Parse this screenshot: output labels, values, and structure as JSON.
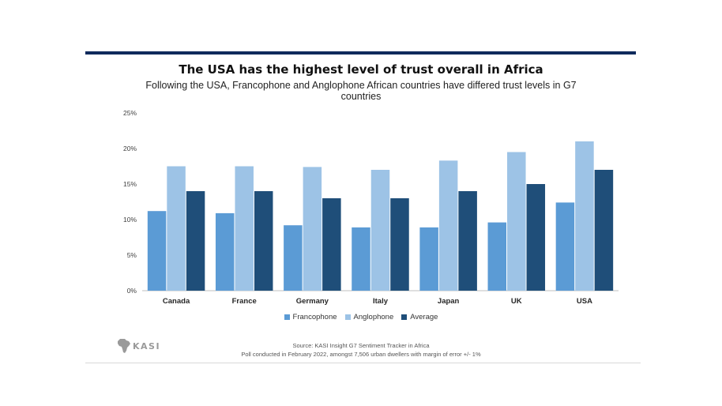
{
  "header": {
    "title": "The USA has the highest level of trust overall in Africa",
    "subtitle": "Following the USA, Francophone and Anglophone African countries have differed trust levels in G7 countries"
  },
  "chart_data": {
    "type": "bar",
    "categories": [
      "Canada",
      "France",
      "Germany",
      "Italy",
      "Japan",
      "UK",
      "USA"
    ],
    "series": [
      {
        "name": "Francophone",
        "color": "#5b9bd5",
        "values": [
          11.2,
          10.9,
          9.2,
          8.9,
          8.9,
          9.6,
          12.4
        ]
      },
      {
        "name": "Anglophone",
        "color": "#9dc3e6",
        "values": [
          17.5,
          17.5,
          17.4,
          17.0,
          18.3,
          19.5,
          21.0
        ]
      },
      {
        "name": "Average",
        "color": "#1f4e79",
        "values": [
          14.0,
          14.0,
          13.0,
          13.0,
          14.0,
          15.0,
          17.0
        ]
      }
    ],
    "yticks": [
      "0%",
      "5%",
      "10%",
      "15%",
      "20%",
      "25%"
    ],
    "ylim": [
      0,
      25
    ],
    "grid": false,
    "legend": "bottom"
  },
  "footer": {
    "logo_text": "KASI",
    "source_line1": "Source: KASI Insight G7 Sentiment Tracker in Africa",
    "source_line2": "Poll conducted in February 2022, amongst 7,506 urban dwellers with  margin of error +/- 1%"
  }
}
